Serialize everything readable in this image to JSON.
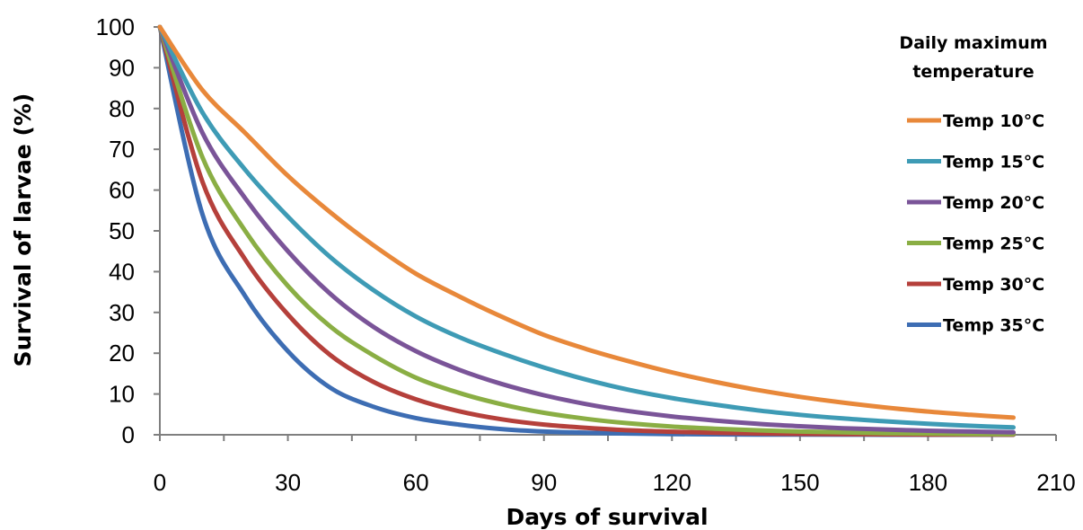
{
  "chart_data": {
    "type": "line",
    "title": "",
    "xlabel": "Days of survival",
    "ylabel": "Survival of larvae (%)",
    "xlim": [
      0,
      210
    ],
    "ylim": [
      0,
      100
    ],
    "xticks": [
      0,
      30,
      60,
      90,
      120,
      150,
      180,
      210
    ],
    "yticks": [
      0,
      10,
      20,
      30,
      40,
      50,
      60,
      70,
      80,
      90,
      100
    ],
    "grid": false,
    "legend": {
      "title_lines": [
        "Daily maximum",
        "temperature"
      ],
      "placement": "right"
    },
    "x": [
      0,
      10,
      20,
      30,
      40,
      50,
      60,
      70,
      80,
      90,
      100,
      110,
      120,
      130,
      140,
      150,
      160,
      170,
      180,
      190,
      200
    ],
    "series": [
      {
        "name": "Temp 10°C",
        "color": "#E8883A",
        "values": [
          100,
          84.5,
          74,
          63.5,
          54.5,
          46.5,
          39.5,
          34,
          29,
          24.5,
          21,
          18,
          15.3,
          13,
          11,
          9.3,
          7.9,
          6.7,
          5.7,
          4.9,
          4.2
        ]
      },
      {
        "name": "Temp 15°C",
        "color": "#3E9BB5",
        "values": [
          100,
          79,
          65,
          53.5,
          43.5,
          35.5,
          29,
          24,
          20,
          16.5,
          13.5,
          11,
          9,
          7.4,
          6,
          4.9,
          4,
          3.3,
          2.7,
          2.2,
          1.8
        ]
      },
      {
        "name": "Temp 20°C",
        "color": "#7A5498",
        "values": [
          100,
          74,
          58,
          45,
          34.5,
          26.5,
          20.5,
          16,
          12.5,
          9.7,
          7.5,
          5.8,
          4.5,
          3.5,
          2.7,
          2.1,
          1.6,
          1.3,
          1,
          0.8,
          0.6
        ]
      },
      {
        "name": "Temp 25°C",
        "color": "#8AAE44",
        "values": [
          100,
          68,
          50,
          36.5,
          26.5,
          19.5,
          14,
          10.3,
          7.5,
          5.4,
          3.9,
          2.8,
          2,
          1.5,
          1.1,
          0.8,
          0.6,
          0.4,
          0.3,
          0.2,
          0.15
        ]
      },
      {
        "name": "Temp 30°C",
        "color": "#B5403B",
        "values": [
          100,
          62,
          43,
          29.5,
          19.5,
          13,
          8.7,
          5.8,
          3.8,
          2.5,
          1.7,
          1.1,
          0.75,
          0.5,
          0.33,
          0.22,
          0.15,
          0.1,
          0.07,
          0.05,
          0.03
        ]
      },
      {
        "name": "Temp 35°C",
        "color": "#3D6DB3",
        "values": [
          100,
          54,
          34,
          20.5,
          11.5,
          6.9,
          4.1,
          2.5,
          1.4,
          0.8,
          0.5,
          0.3,
          0.18,
          0.1,
          0.06,
          0.04,
          0.02,
          0.01,
          0.01,
          0.0,
          0.0
        ]
      }
    ]
  }
}
